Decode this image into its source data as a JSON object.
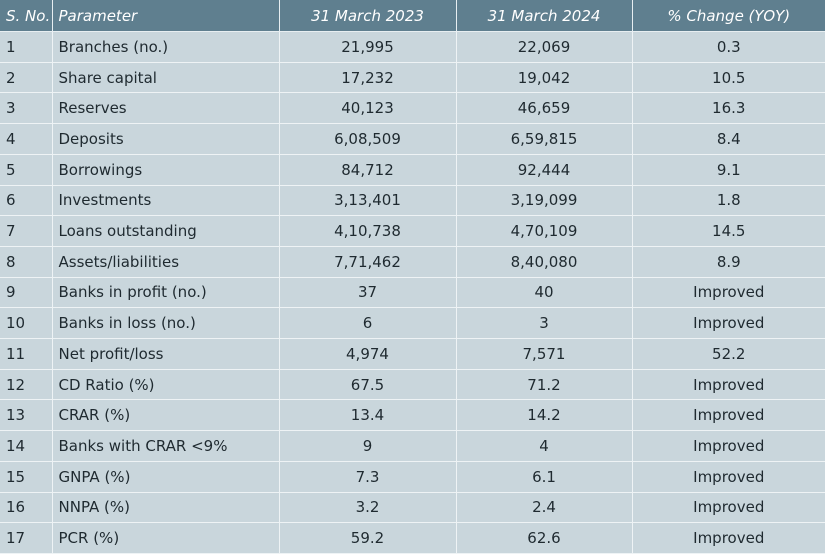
{
  "table": {
    "headers": [
      "S. No.",
      "Parameter",
      "31 March 2023",
      "31 March 2024",
      "% Change (YOY)"
    ],
    "rows": [
      {
        "sno": "1",
        "parameter": "Branches (no.)",
        "v2023": "21,995",
        "v2024": "22,069",
        "change": "0.3"
      },
      {
        "sno": "2",
        "parameter": "Share capital",
        "v2023": "17,232",
        "v2024": "19,042",
        "change": "10.5"
      },
      {
        "sno": "3",
        "parameter": "Reserves",
        "v2023": "40,123",
        "v2024": "46,659",
        "change": "16.3"
      },
      {
        "sno": "4",
        "parameter": "Deposits",
        "v2023": "6,08,509",
        "v2024": "6,59,815",
        "change": "8.4"
      },
      {
        "sno": "5",
        "parameter": "Borrowings",
        "v2023": "84,712",
        "v2024": "92,444",
        "change": "9.1"
      },
      {
        "sno": "6",
        "parameter": "Investments",
        "v2023": "3,13,401",
        "v2024": "3,19,099",
        "change": "1.8"
      },
      {
        "sno": "7",
        "parameter": "Loans outstanding",
        "v2023": "4,10,738",
        "v2024": "4,70,109",
        "change": "14.5"
      },
      {
        "sno": "8",
        "parameter": "Assets/liabilities",
        "v2023": "7,71,462",
        "v2024": "8,40,080",
        "change": "8.9"
      },
      {
        "sno": "9",
        "parameter": "Banks in profit (no.)",
        "v2023": "37",
        "v2024": "40",
        "change": "Improved"
      },
      {
        "sno": "10",
        "parameter": "Banks in loss (no.)",
        "v2023": "6",
        "v2024": "3",
        "change": "Improved"
      },
      {
        "sno": "11",
        "parameter": "Net profit/loss",
        "v2023": "4,974",
        "v2024": "7,571",
        "change": "52.2"
      },
      {
        "sno": "12",
        "parameter": "CD Ratio (%)",
        "v2023": "67.5",
        "v2024": "71.2",
        "change": "Improved"
      },
      {
        "sno": "13",
        "parameter": "CRAR (%)",
        "v2023": "13.4",
        "v2024": "14.2",
        "change": "Improved"
      },
      {
        "sno": "14",
        "parameter": "Banks with CRAR <9%",
        "v2023": "9",
        "v2024": "4",
        "change": "Improved"
      },
      {
        "sno": "15",
        "parameter": "GNPA (%)",
        "v2023": "7.3",
        "v2024": "6.1",
        "change": "Improved"
      },
      {
        "sno": "16",
        "parameter": "NNPA (%)",
        "v2023": "3.2",
        "v2024": "2.4",
        "change": "Improved"
      },
      {
        "sno": "17",
        "parameter": "PCR (%)",
        "v2023": "59.2",
        "v2024": "62.6",
        "change": "Improved"
      }
    ]
  },
  "colors": {
    "header_bg": "#5f7f8f",
    "body_bg": "#c9d6dc",
    "gridline": "#eef3f5",
    "text": "#1f2a30"
  }
}
